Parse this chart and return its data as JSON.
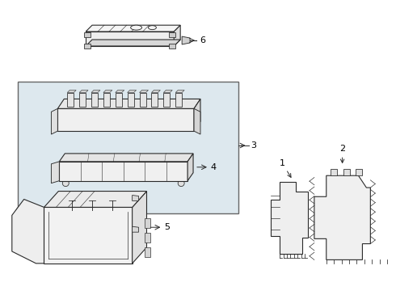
{
  "background_color": "#ffffff",
  "line_color": "#2a2a2a",
  "label_color": "#000000",
  "box3_fill": "#dde8ee",
  "box3_edge": "#555555",
  "figsize": [
    4.9,
    3.6
  ],
  "dpi": 100,
  "lw": 0.8
}
